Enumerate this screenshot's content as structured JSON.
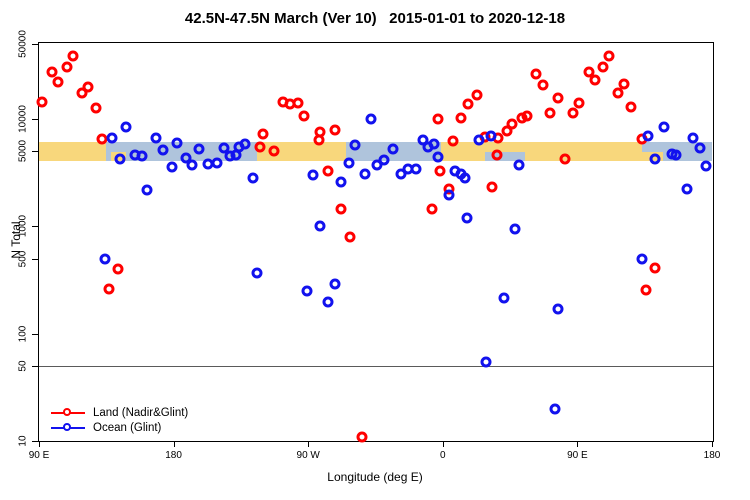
{
  "title": "42.5N-47.5N March (Ver 10)   2015-01-01 to 2020-12-18",
  "axes": {
    "x_label": "Longitude (deg E)",
    "y_label": "N Total",
    "x_range": [
      90,
      540
    ],
    "y_range": [
      10,
      50000
    ],
    "y_scale": "log",
    "x_ticks": [
      {
        "lon": 90,
        "label": "90 E"
      },
      {
        "lon": 180,
        "label": "180"
      },
      {
        "lon": 270,
        "label": "90 W"
      },
      {
        "lon": 360,
        "label": "0"
      },
      {
        "lon": 450,
        "label": "90 E"
      },
      {
        "lon": 540,
        "label": "180"
      }
    ],
    "y_ticks": [
      "50000",
      "10000",
      "5000",
      "1000",
      "500",
      "100",
      "50",
      "10"
    ]
  },
  "reference_line": {
    "value": 50,
    "color": "#5a5a5a"
  },
  "map_band": {
    "center_n": 5000,
    "colors": {
      "land": "#F8D77C",
      "ocean": "#AFC4DC"
    },
    "segments": [
      {
        "from": 90,
        "to": 135,
        "surface": "land"
      },
      {
        "from": 135,
        "to": 236,
        "surface": "ocean"
      },
      {
        "from": 236,
        "to": 295,
        "surface": "land"
      },
      {
        "from": 295,
        "to": 359,
        "surface": "ocean"
      },
      {
        "from": 359,
        "to": 493,
        "surface": "land"
      },
      {
        "from": 493,
        "to": 540,
        "surface": "ocean"
      }
    ],
    "patches": [
      {
        "from": 138,
        "to": 148,
        "surface": "land"
      },
      {
        "from": 388,
        "to": 415,
        "surface": "ocean"
      },
      {
        "from": 493,
        "to": 507,
        "surface": "land"
      }
    ]
  },
  "legend": [
    {
      "label": "Land (Nadir&Glint)",
      "color": "#FF0000"
    },
    {
      "label": "Ocean (Glint)",
      "color": "#1212EE"
    }
  ],
  "chart_data": {
    "type": "scatter",
    "x_units": "degrees longitude (east, 90 to 540)",
    "y_units": "N Total (log scale)",
    "series": [
      {
        "name": "Land (Nadir&Glint)",
        "color": "#FF0000",
        "points": [
          [
            113,
            39000
          ],
          [
            109,
            30500
          ],
          [
            99,
            27300
          ],
          [
            103,
            22300
          ],
          [
            92,
            14300
          ],
          [
            119,
            17600
          ],
          [
            123,
            19900
          ],
          [
            128,
            12700
          ],
          [
            132,
            6500
          ],
          [
            143,
            400
          ],
          [
            137,
            260
          ],
          [
            240,
            7300
          ],
          [
            238,
            5500
          ],
          [
            247,
            5050
          ],
          [
            253,
            14500
          ],
          [
            258,
            13700
          ],
          [
            263,
            14100
          ],
          [
            267,
            10700
          ],
          [
            277,
            6400
          ],
          [
            278,
            7600
          ],
          [
            288,
            7900
          ],
          [
            283,
            3250
          ],
          [
            292,
            1440
          ],
          [
            298,
            790
          ],
          [
            306,
            11
          ],
          [
            358,
            3280
          ],
          [
            357,
            10000
          ],
          [
            372,
            10200
          ],
          [
            377,
            13700
          ],
          [
            383,
            16700
          ],
          [
            367,
            6300
          ],
          [
            388,
            6800
          ],
          [
            397,
            6670
          ],
          [
            396,
            4600
          ],
          [
            353,
            1460
          ],
          [
            364,
            2250
          ],
          [
            393,
            2330
          ],
          [
            422,
            26500
          ],
          [
            427,
            20600
          ],
          [
            437,
            15600
          ],
          [
            432,
            11500
          ],
          [
            447,
            11400
          ],
          [
            451,
            14100
          ],
          [
            458,
            27300
          ],
          [
            462,
            23200
          ],
          [
            467,
            30400
          ],
          [
            471,
            39000
          ],
          [
            477,
            17400
          ],
          [
            481,
            21100
          ],
          [
            486,
            12900
          ],
          [
            416,
            10600
          ],
          [
            413,
            10200
          ],
          [
            406,
            9060
          ],
          [
            403,
            7750
          ],
          [
            493,
            6480
          ],
          [
            442,
            4220
          ],
          [
            502,
            407
          ],
          [
            496,
            254
          ]
        ]
      },
      {
        "name": "Ocean (Glint)",
        "color": "#1212EE",
        "points": [
          [
            148,
            8430
          ],
          [
            139,
            6670
          ],
          [
            144,
            4220
          ],
          [
            154,
            4660
          ],
          [
            159,
            4500
          ],
          [
            168,
            6670
          ],
          [
            173,
            5150
          ],
          [
            182,
            6030
          ],
          [
            179,
            3560
          ],
          [
            188,
            4310
          ],
          [
            192,
            3760
          ],
          [
            197,
            5300
          ],
          [
            203,
            3820
          ],
          [
            209,
            3900
          ],
          [
            214,
            5340
          ],
          [
            218,
            4500
          ],
          [
            222,
            4660
          ],
          [
            224,
            5500
          ],
          [
            228,
            5900
          ],
          [
            233,
            2800
          ],
          [
            162,
            2180
          ],
          [
            134,
            500
          ],
          [
            236,
            370
          ],
          [
            312,
            9900
          ],
          [
            301,
            5740
          ],
          [
            297,
            3870
          ],
          [
            308,
            3060
          ],
          [
            316,
            3730
          ],
          [
            321,
            4130
          ],
          [
            327,
            5300
          ],
          [
            332,
            3100
          ],
          [
            337,
            3400
          ],
          [
            342,
            3430
          ],
          [
            347,
            6430
          ],
          [
            350,
            5500
          ],
          [
            354,
            5820
          ],
          [
            357,
            4470
          ],
          [
            368,
            3280
          ],
          [
            372,
            3100
          ],
          [
            375,
            2840
          ],
          [
            273,
            3010
          ],
          [
            292,
            2590
          ],
          [
            278,
            1000
          ],
          [
            269,
            250
          ],
          [
            288,
            288
          ],
          [
            283,
            196
          ],
          [
            364,
            1970
          ],
          [
            376,
            1190
          ],
          [
            384,
            6380
          ],
          [
            392,
            6950
          ],
          [
            508,
            8500
          ],
          [
            527,
            6620
          ],
          [
            532,
            5340
          ],
          [
            513,
            4760
          ],
          [
            516,
            4660
          ],
          [
            502,
            4220
          ],
          [
            536,
            3630
          ],
          [
            411,
            3710
          ],
          [
            523,
            2230
          ],
          [
            497,
            7000
          ],
          [
            408,
            950
          ],
          [
            493,
            500
          ],
          [
            401,
            214
          ],
          [
            437,
            171
          ],
          [
            389,
            55
          ],
          [
            435,
            20
          ]
        ]
      }
    ]
  }
}
